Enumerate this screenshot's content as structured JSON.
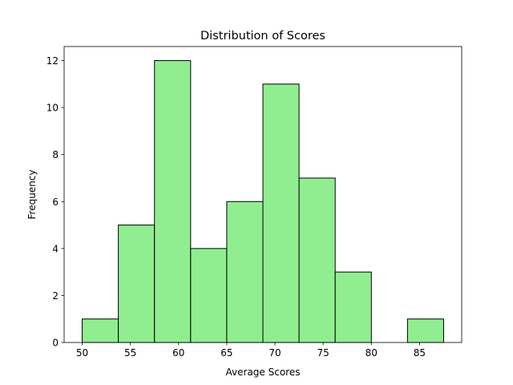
{
  "chart_data": {
    "type": "bar",
    "title": "Distribution of Scores",
    "xlabel": "Average Scores",
    "ylabel": "Frequency",
    "bin_edges": [
      50.0,
      53.75,
      57.5,
      61.25,
      65.0,
      68.75,
      72.5,
      76.25,
      80.0,
      83.75,
      87.5
    ],
    "values": [
      1,
      5,
      12,
      4,
      6,
      11,
      7,
      3,
      0,
      1
    ],
    "xlim": [
      48.125,
      89.375
    ],
    "ylim": [
      0,
      12.6
    ],
    "xticks": [
      50,
      55,
      60,
      65,
      70,
      75,
      80,
      85
    ],
    "yticks": [
      0,
      2,
      4,
      6,
      8,
      10,
      12
    ],
    "bar_color": "#90ee90",
    "edge_color": "#000000",
    "grid": false
  }
}
